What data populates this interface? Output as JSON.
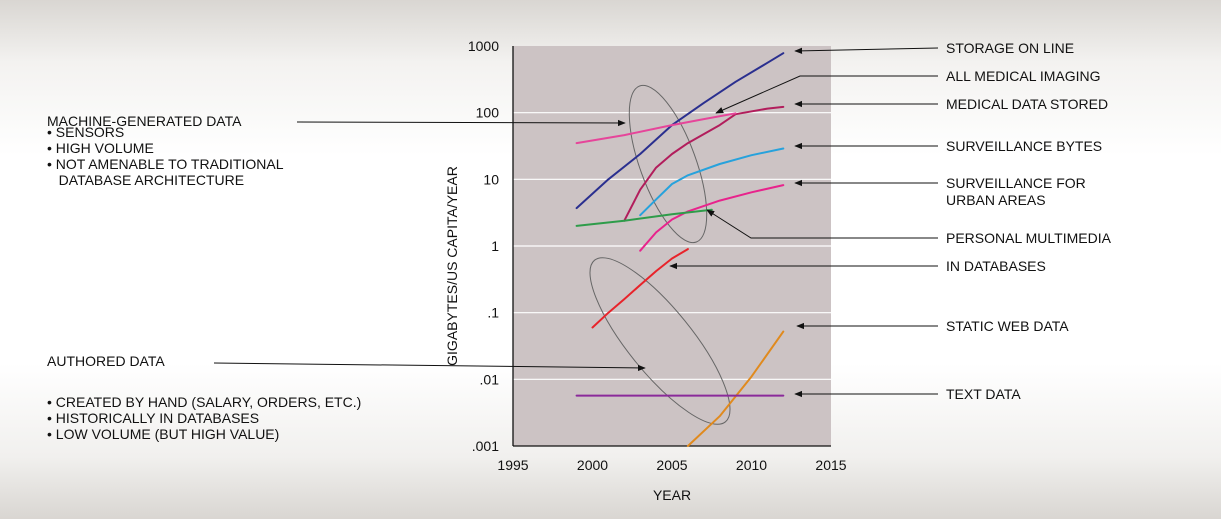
{
  "chart_data": {
    "type": "line",
    "xlabel": "YEAR",
    "ylabel": "GIGABYTES/US CAPITA/YEAR",
    "xlim": [
      1995,
      2015
    ],
    "ylim": [
      0.001,
      1000
    ],
    "yscale": "log",
    "xticks": [
      "1995",
      "2000",
      "2005",
      "2010",
      "2015"
    ],
    "yticks": [
      {
        "value": 1000,
        "label": "1000"
      },
      {
        "value": 100,
        "label": "100"
      },
      {
        "value": 10,
        "label": "10"
      },
      {
        "value": 1,
        "label": "1"
      },
      {
        "value": 0.1,
        "label": ".1"
      },
      {
        "value": 0.01,
        "label": ".01"
      },
      {
        "value": 0.001,
        "label": ".001"
      }
    ],
    "grid": true,
    "plot_background": "#ccc3c4",
    "series": [
      {
        "name": "STORAGE ON LINE",
        "color": "#2a2f8f",
        "x": [
          1999,
          2001,
          2003,
          2005,
          2007,
          2009,
          2011,
          2012
        ],
        "y": [
          3.7,
          10,
          24,
          65,
          140,
          290,
          560,
          780
        ]
      },
      {
        "name": "ALL MEDICAL IMAGING",
        "color": "#b21d5c",
        "x": [
          2002,
          2003,
          2004,
          2005,
          2006,
          2008,
          2009,
          2011,
          2012
        ],
        "y": [
          2.4,
          7,
          15,
          24,
          35,
          65,
          95,
          115,
          122
        ]
      },
      {
        "name": "MEDICAL DATA STORED",
        "color": "#e6459a",
        "x": [
          1999,
          2002,
          2005,
          2007,
          2009
        ],
        "y": [
          35,
          46,
          65,
          80,
          98
        ]
      },
      {
        "name": "SURVEILLANCE BYTES",
        "color": "#27a2dc",
        "x": [
          2003,
          2004,
          2005,
          2006,
          2008,
          2010,
          2012
        ],
        "y": [
          2.9,
          5,
          8.5,
          11.5,
          17,
          23,
          29
        ]
      },
      {
        "name": "SURVEILLANCE FOR URBAN AREAS",
        "color": "#e8238c",
        "x": [
          2003,
          2004,
          2005,
          2006,
          2008,
          2010,
          2012
        ],
        "y": [
          0.85,
          1.6,
          2.5,
          3.3,
          4.8,
          6.4,
          8.2
        ]
      },
      {
        "name": "PERSONAL MULTIMEDIA",
        "color": "#2e9c4a",
        "x": [
          1999,
          2002,
          2005,
          2007.5
        ],
        "y": [
          2.0,
          2.4,
          3.0,
          3.5
        ]
      },
      {
        "name": "IN DATABASES",
        "color": "#e8232a",
        "x": [
          2000,
          2001,
          2002,
          2003,
          2004,
          2005,
          2006
        ],
        "y": [
          0.06,
          0.1,
          0.16,
          0.26,
          0.42,
          0.65,
          0.9
        ]
      },
      {
        "name": "STATIC WEB DATA",
        "color": "#e08a1e",
        "x": [
          2006,
          2008,
          2010,
          2012
        ],
        "y": [
          0.001,
          0.0028,
          0.011,
          0.052
        ]
      },
      {
        "name": "TEXT DATA",
        "color": "#8a2a9a",
        "x": [
          1999,
          2012
        ],
        "y": [
          0.0057,
          0.0057
        ]
      }
    ],
    "series_label_lines": [
      [
        "STORAGE ON LINE"
      ],
      [
        "ALL MEDICAL IMAGING"
      ],
      [
        "MEDICAL DATA STORED"
      ],
      [
        "SURVEILLANCE BYTES"
      ],
      [
        "SURVEILLANCE FOR",
        "URBAN AREAS"
      ],
      [
        "PERSONAL MULTIMEDIA"
      ],
      [
        "IN DATABASES"
      ],
      [
        "STATIC WEB DATA"
      ],
      [
        "TEXT DATA"
      ]
    ],
    "annotations": {
      "machine": {
        "title": "MACHINE-GENERATED DATA",
        "bullets": [
          "• SENSORS",
          "• HIGH VOLUME",
          "• NOT AMENABLE TO TRADITIONAL",
          "   DATABASE ARCHITECTURE"
        ]
      },
      "authored": {
        "title": "AUTHORED DATA",
        "bullets": [
          "• CREATED BY HAND (SALARY, ORDERS, ETC.)",
          "• HISTORICALLY IN DATABASES",
          "• LOW VOLUME (BUT HIGH VALUE)"
        ]
      }
    }
  }
}
